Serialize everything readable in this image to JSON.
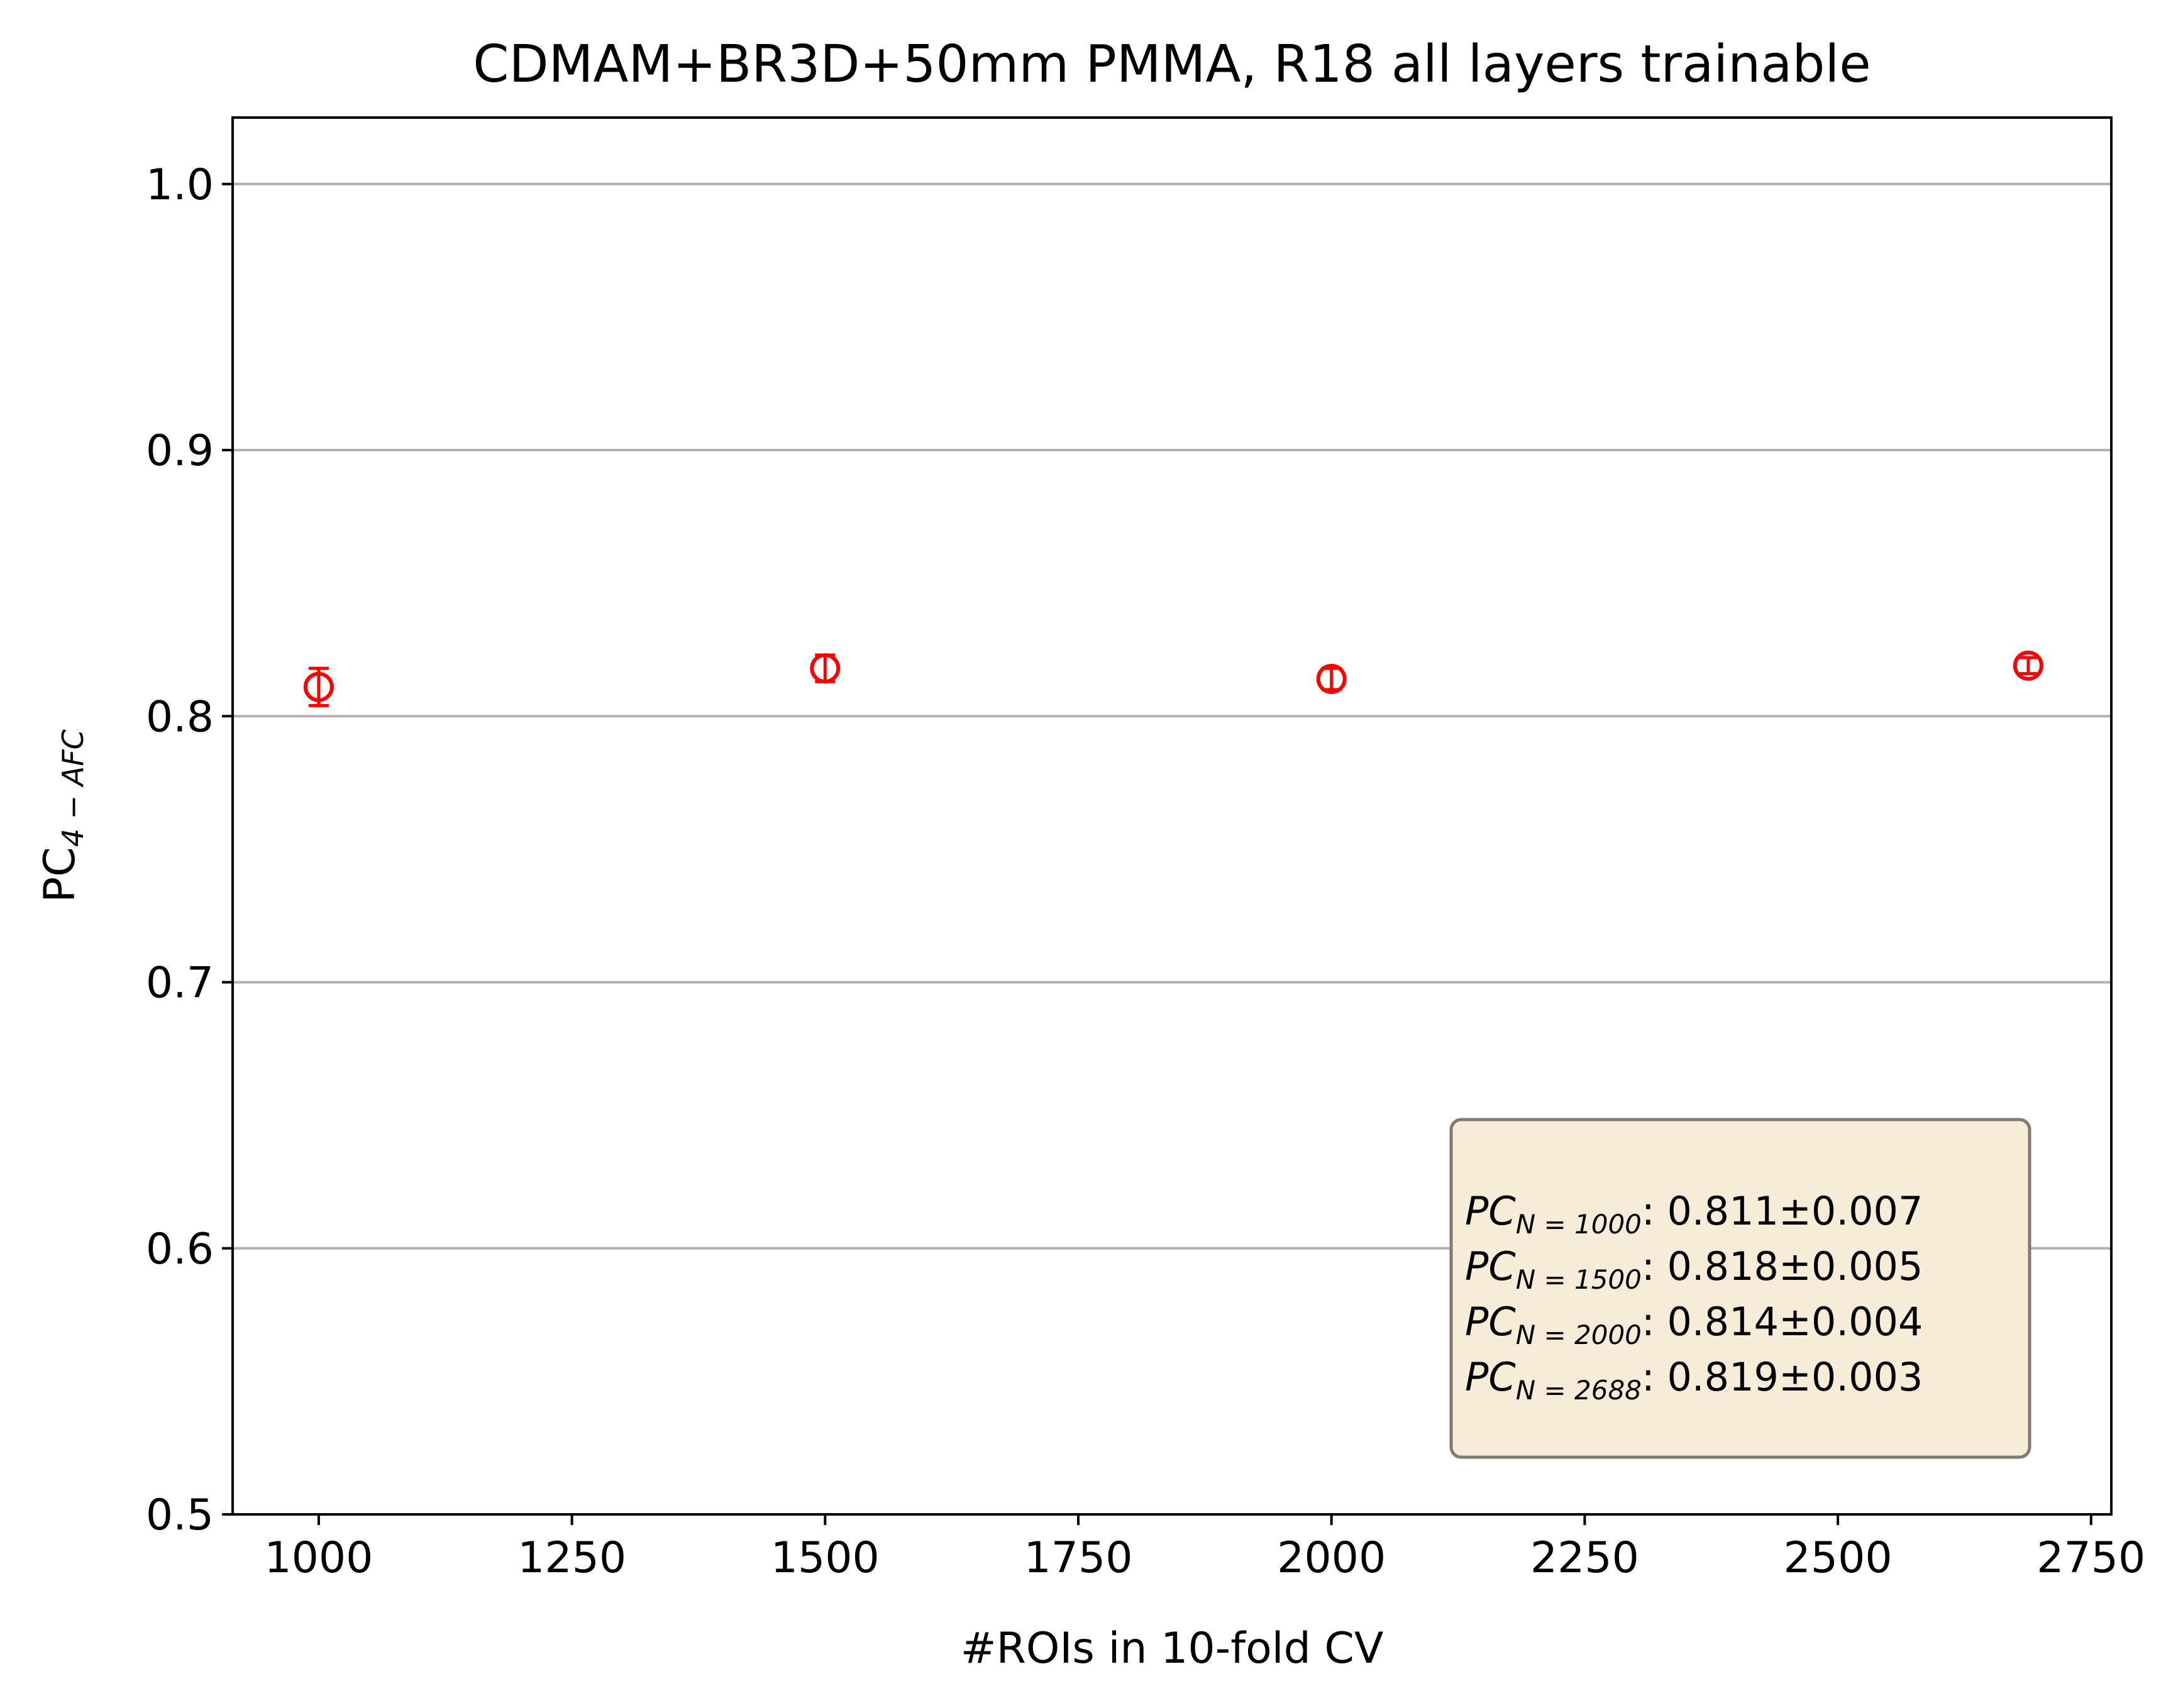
{
  "chart_data": {
    "type": "scatter",
    "title": "CDMAM+BR3D+50mm PMMA, R18 all layers trainable",
    "xlabel": "#ROIs in 10-fold CV",
    "ylabel": "PC",
    "ylabel_sub": "4 − AFC",
    "xlim": [
      915,
      2770
    ],
    "ylim": [
      0.5,
      1.025
    ],
    "x_ticks": [
      1000,
      1250,
      1500,
      1750,
      2000,
      2250,
      2500,
      2750
    ],
    "x_tick_labels": [
      "1000",
      "1250",
      "1500",
      "1750",
      "2000",
      "2250",
      "2500",
      "2750"
    ],
    "y_ticks": [
      0.5,
      0.6,
      0.7,
      0.8,
      0.9,
      1.0
    ],
    "y_tick_labels": [
      "0.5",
      "0.6",
      "0.7",
      "0.8",
      "0.9",
      "1.0"
    ],
    "grid": "horizontal",
    "marker": "open-circle",
    "color": "#ff0000",
    "points": [
      {
        "x": 1000,
        "y": 0.811,
        "err": 0.007
      },
      {
        "x": 1500,
        "y": 0.818,
        "err": 0.005
      },
      {
        "x": 2000,
        "y": 0.814,
        "err": 0.004
      },
      {
        "x": 2688,
        "y": 0.819,
        "err": 0.003
      }
    ],
    "annotation": {
      "position": "bottom-right",
      "background": "#f7ecd7",
      "lines": [
        {
          "label": "PC",
          "sub": "N = 1000",
          "value": ": 0.811±0.007"
        },
        {
          "label": "PC",
          "sub": "N = 1500",
          "value": ": 0.818±0.005"
        },
        {
          "label": "PC",
          "sub": "N = 2000",
          "value": ": 0.814±0.004"
        },
        {
          "label": "PC",
          "sub": "N = 2688",
          "value": ": 0.819±0.003"
        }
      ]
    }
  }
}
